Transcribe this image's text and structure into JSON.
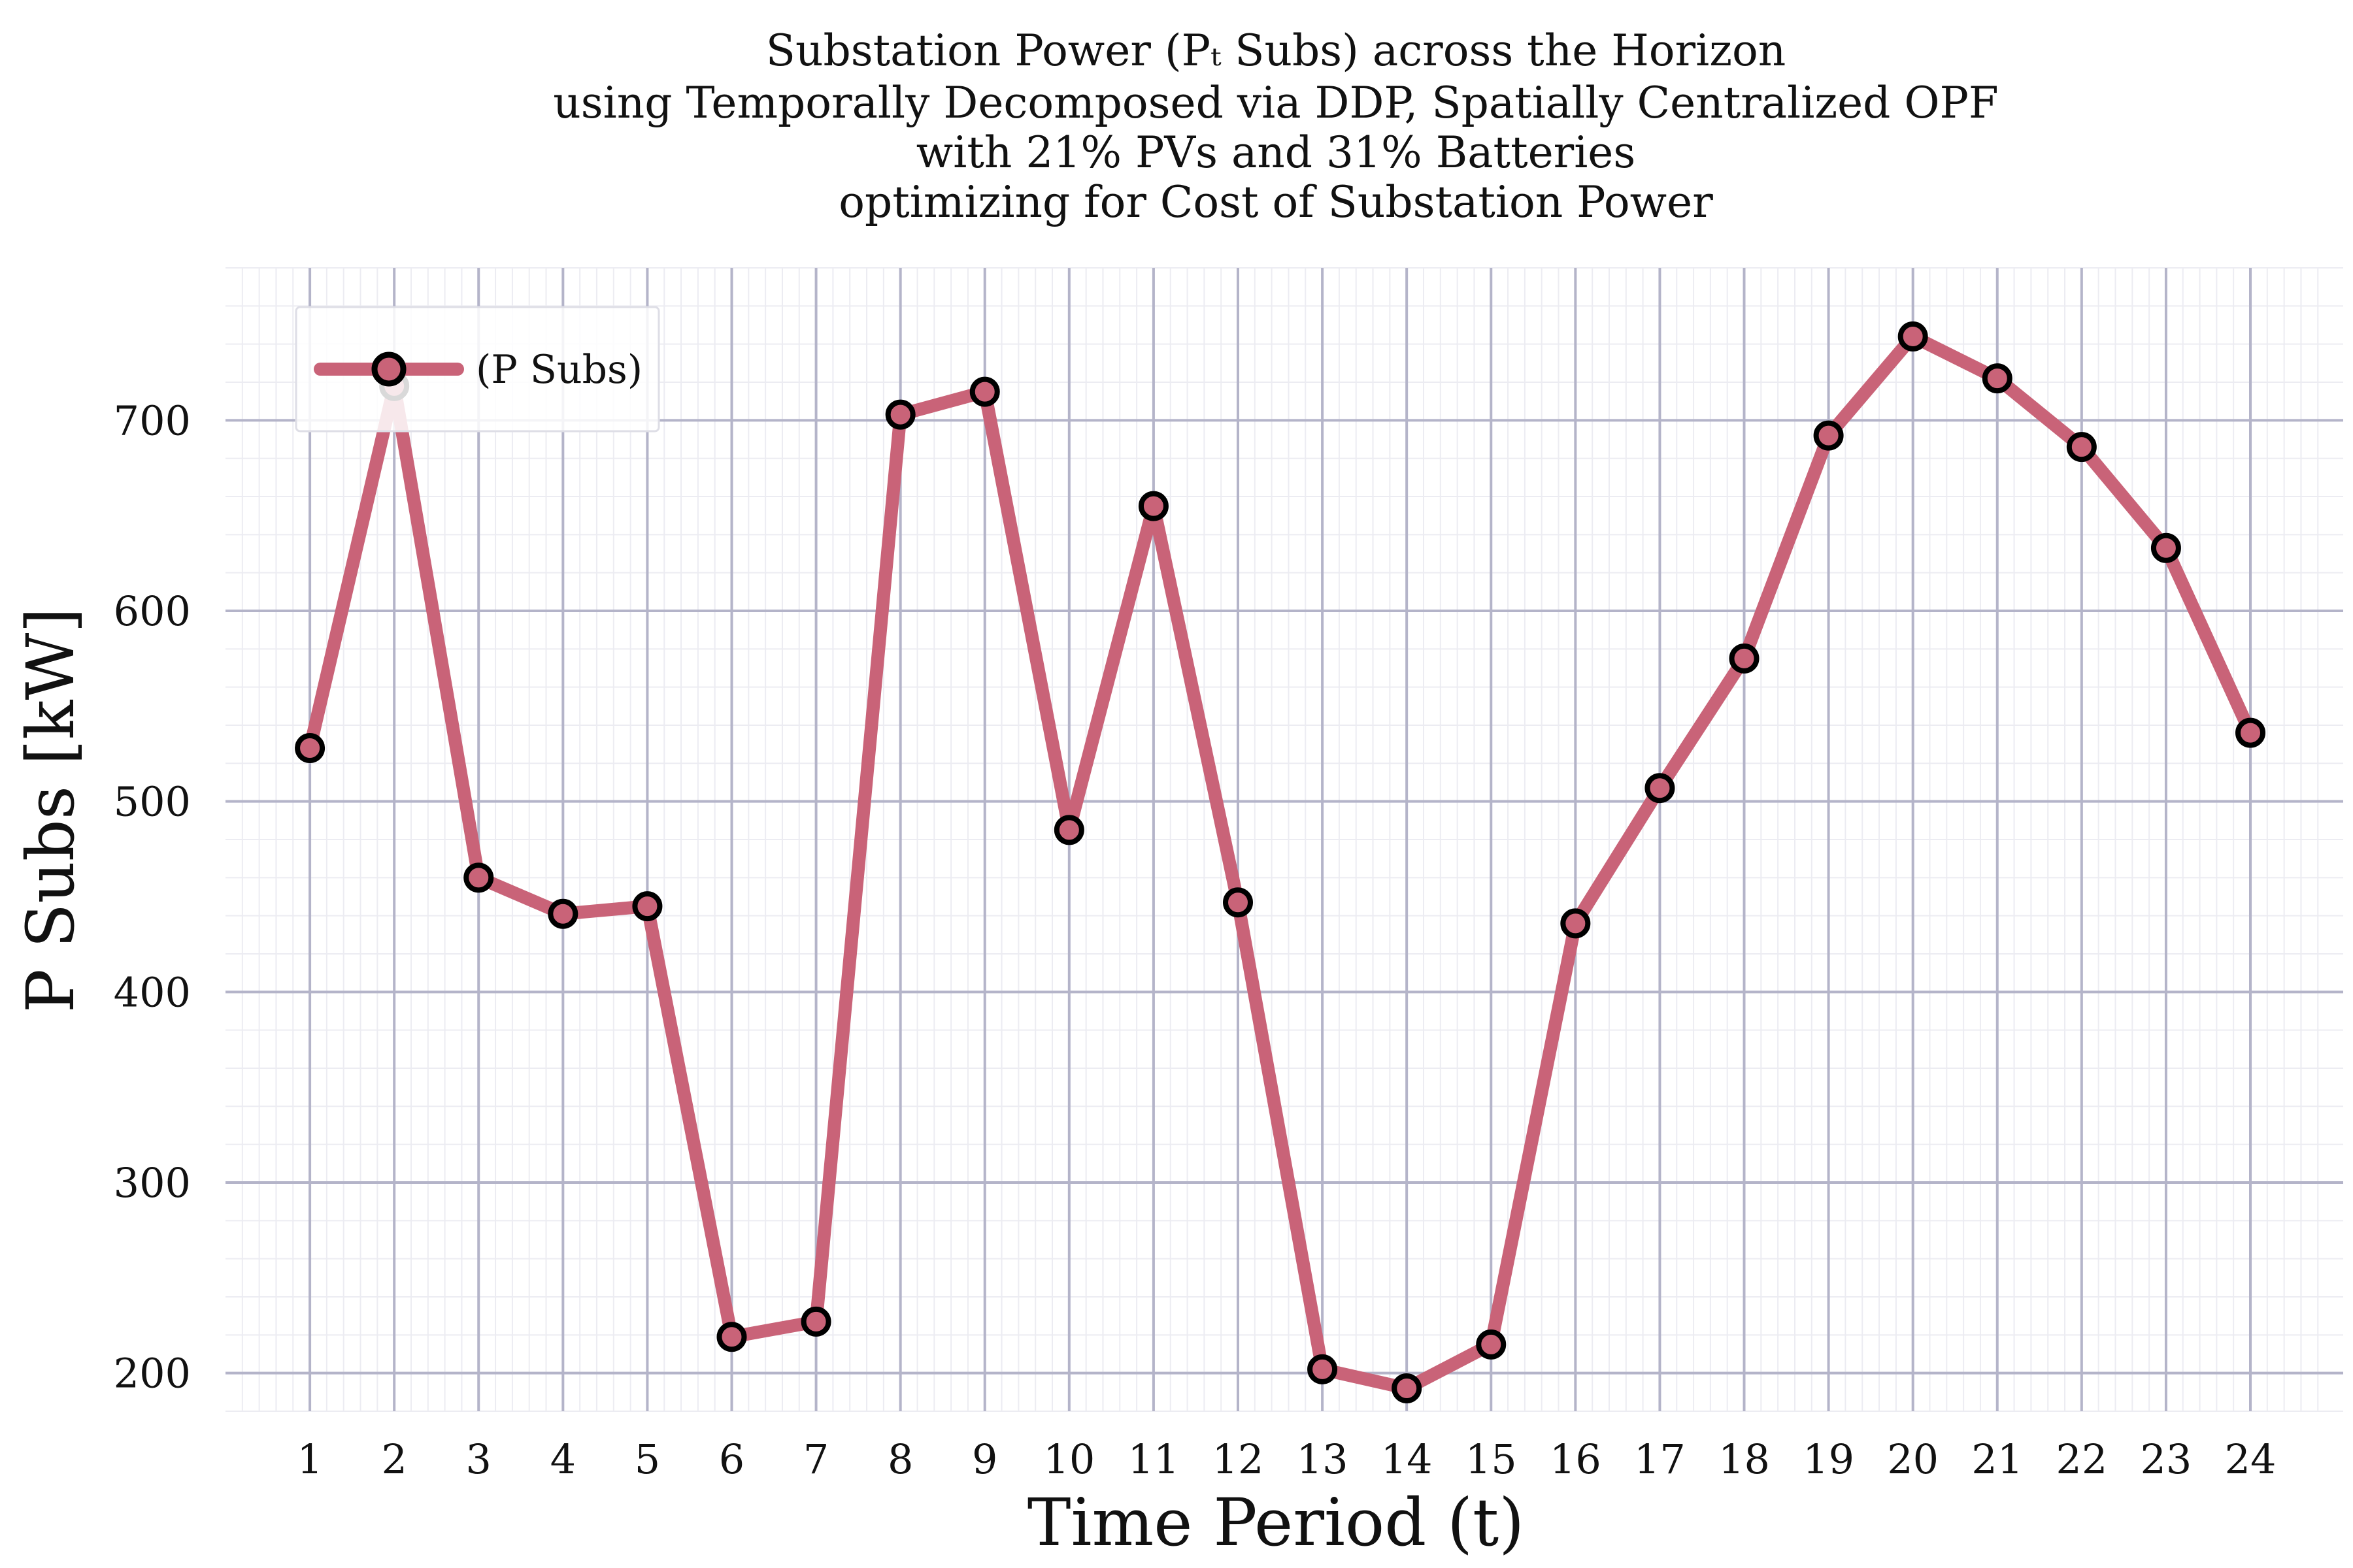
{
  "chart_data": {
    "type": "line",
    "title_lines": [
      "Substation Power (Pₜ Subs) across the Horizon",
      "using Temporally Decomposed via DDP, Spatially Centralized OPF",
      "with 21% PVs and 31% Batteries",
      "optimizing for Cost of Substation Power"
    ],
    "xlabel": "Time Period (t)",
    "ylabel": "P Subs [kW]",
    "x": [
      1,
      2,
      3,
      4,
      5,
      6,
      7,
      8,
      9,
      10,
      11,
      12,
      13,
      14,
      15,
      16,
      17,
      18,
      19,
      20,
      21,
      22,
      23,
      24
    ],
    "series": [
      {
        "name": "(P Subs)",
        "values": [
          528,
          718,
          460,
          441,
          445,
          219,
          227,
          703,
          715,
          485,
          655,
          447,
          202,
          192,
          215,
          436,
          507,
          575,
          692,
          744,
          722,
          686,
          633,
          536
        ]
      }
    ],
    "yticks": [
      200,
      300,
      400,
      500,
      600,
      700
    ],
    "xlim": [
      0,
      25.1
    ],
    "ylim": [
      180,
      780
    ],
    "grid": true,
    "legend_position": "top-left",
    "colors": {
      "line": "#c96378",
      "marker_fill": "#c96378",
      "marker_edge": "#000000",
      "grid_major": "#b4b4c9",
      "grid_minor": "#ececf2"
    }
  }
}
